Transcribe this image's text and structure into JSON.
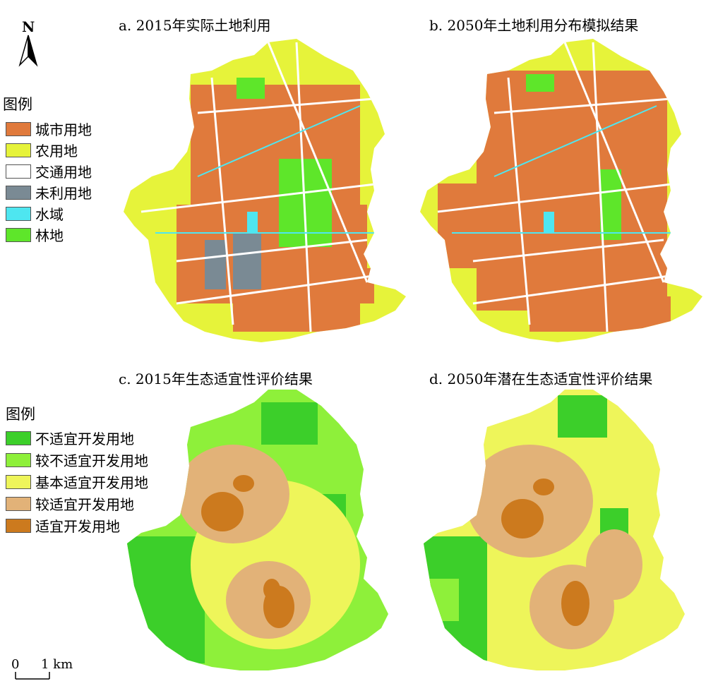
{
  "titles": {
    "a": "a. 2015年实际土地利用",
    "b": "b. 2050年土地利用分布模拟结果",
    "c": "c. 2015年生态适宜性评价结果",
    "d": "d. 2050年潜在生态适宜性评价结果"
  },
  "north_label": "N",
  "legend1": {
    "title": "图例",
    "items": [
      {
        "label": "城市用地",
        "color": "#e07a3c"
      },
      {
        "label": "农用地",
        "color": "#e6f33a"
      },
      {
        "label": "交通用地",
        "color": "#ffffff"
      },
      {
        "label": "未利用地",
        "color": "#7a8a94"
      },
      {
        "label": "水域",
        "color": "#4ee6f0"
      },
      {
        "label": "林地",
        "color": "#5ee62a"
      }
    ]
  },
  "legend2": {
    "title": "图例",
    "items": [
      {
        "label": "不适宜开发用地",
        "color": "#3ccf2a"
      },
      {
        "label": "较不适宜开发用地",
        "color": "#8ef03a"
      },
      {
        "label": "基本适宜开发用地",
        "color": "#eef55a"
      },
      {
        "label": "较适宜开发用地",
        "color": "#e2b278"
      },
      {
        "label": "适宜开发用地",
        "color": "#cc7a1e"
      }
    ]
  },
  "scale": {
    "start": "0",
    "end": "1 km"
  }
}
